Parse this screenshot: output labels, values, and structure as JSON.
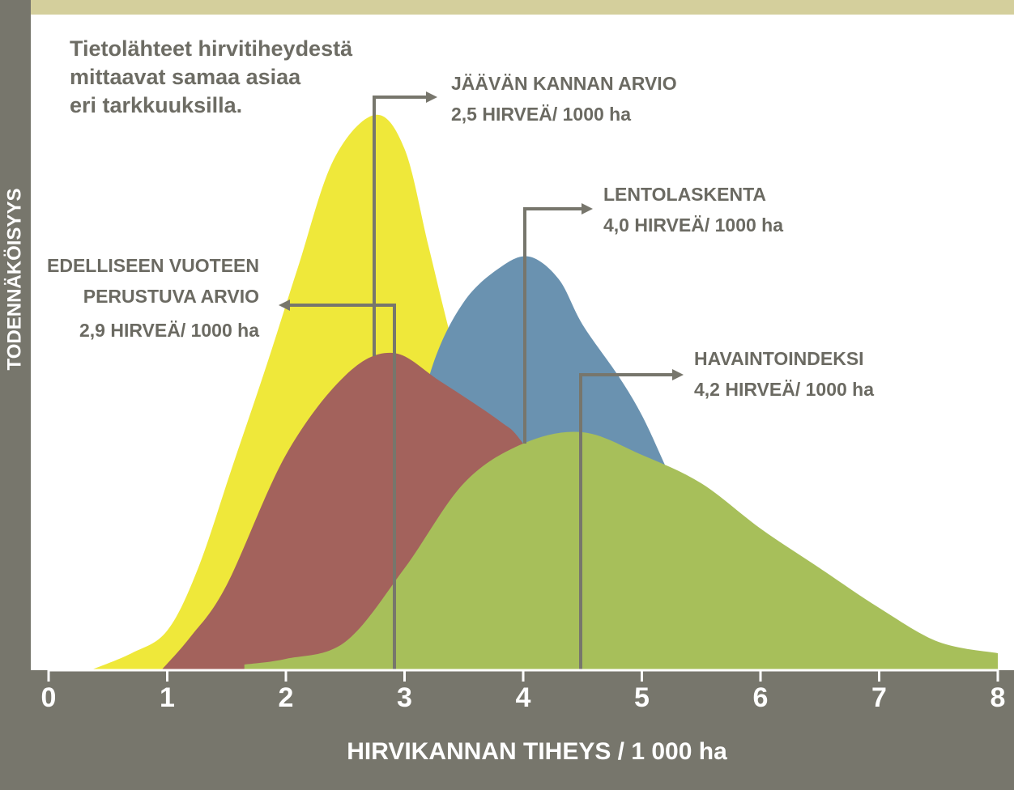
{
  "chart_data": {
    "type": "area",
    "title": [
      "Tietolähteet hirvitiheydestä",
      "mittaavat samaa asiaa",
      "eri tarkkuuksilla."
    ],
    "xlabel": "HIRVIKANNAN TIHEYS / 1 000 ha",
    "ylabel": "TODENNÄKÖISYYS",
    "xlim": [
      0,
      8
    ],
    "xticks": [
      0,
      1,
      2,
      3,
      4,
      5,
      6,
      7,
      8
    ],
    "ylim": [
      0,
      100
    ],
    "series": [
      {
        "name": [
          "JÄÄVÄN KANNAN ARVIO"
        ],
        "label": "2,5 HIRVEÄ/ 1000 ha",
        "color": "#efe83a",
        "x": [
          0.35,
          0.7,
          1.0,
          1.26,
          1.55,
          1.84,
          2.1,
          2.4,
          2.75,
          3.0,
          3.2,
          3.4,
          3.7,
          4.0,
          4.5,
          5.0
        ],
        "values": [
          0,
          3,
          7,
          18,
          36,
          54,
          71,
          90,
          98,
          92,
          75,
          58,
          35,
          18,
          5,
          0
        ]
      },
      {
        "name": [
          "LENTOLASKENTA"
        ],
        "label": "4,0 HIRVEÄ/ 1000 ha",
        "color": "#6a92b0",
        "x": [
          2.5,
          3.0,
          3.24,
          3.5,
          3.8,
          4.05,
          4.3,
          4.5,
          4.8,
          5.0,
          5.2,
          5.5,
          6.0,
          6.5
        ],
        "values": [
          5,
          35,
          54,
          65,
          71,
          73,
          69,
          61,
          52,
          45,
          36,
          22,
          8,
          0
        ]
      },
      {
        "name": [
          "EDELLISEEN VUOTEEN",
          "PERUSTUVA ARVIO"
        ],
        "label": "2,9 HIRVEÄ/ 1000 ha",
        "color": "#a3625c",
        "x": [
          0.95,
          1.2,
          1.5,
          2.0,
          2.5,
          2.9,
          3.3,
          3.8,
          4.0,
          4.5,
          5.0,
          5.5,
          6.0
        ],
        "values": [
          0,
          6,
          15,
          38,
          52,
          56,
          51,
          44,
          40,
          25,
          12,
          4,
          0
        ]
      },
      {
        "name": [
          "HAVAINTOINDEKSI"
        ],
        "label": "4,2 HIRVEÄ/ 1000 ha",
        "color": "#a7bf5a",
        "x": [
          1.65,
          2.0,
          2.5,
          3.0,
          3.5,
          4.0,
          4.5,
          5.0,
          5.5,
          6.0,
          6.5,
          7.0,
          7.5,
          8.0
        ],
        "values": [
          1,
          2,
          5,
          18,
          33,
          40,
          42,
          38,
          33,
          25,
          18,
          11,
          5,
          3
        ]
      }
    ]
  }
}
